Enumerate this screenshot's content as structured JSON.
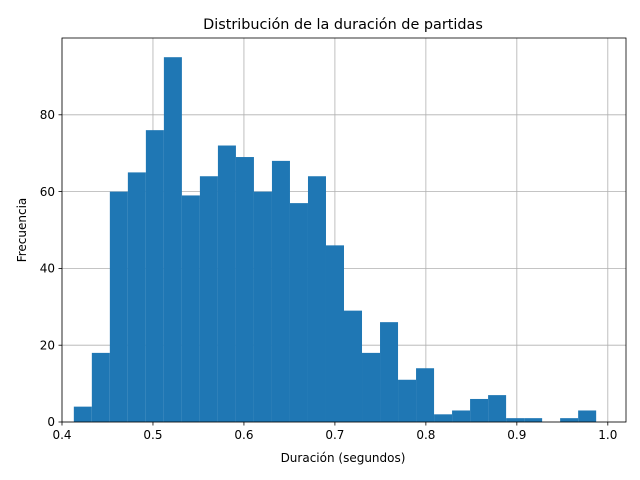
{
  "chart_data": {
    "type": "bar",
    "title": "Distribución de la duración de partidas",
    "xlabel": "Duración (segundos)",
    "ylabel": "Frecuencia",
    "xlim": [
      0.4,
      1.02
    ],
    "ylim": [
      0,
      100
    ],
    "grid": true,
    "bar_color": "#1f77b4",
    "x_ticks": [
      0.4,
      0.5,
      0.6,
      0.7,
      0.8,
      0.9,
      1.0
    ],
    "x_tick_labels": [
      "0.4",
      "0.5",
      "0.6",
      "0.7",
      "0.8",
      "0.9",
      "1.0"
    ],
    "y_ticks": [
      0,
      20,
      40,
      60,
      80
    ],
    "y_tick_labels": [
      "0",
      "20",
      "40",
      "60",
      "80"
    ],
    "bin_start": 0.413,
    "bin_width": 0.0198,
    "values": [
      4,
      18,
      60,
      65,
      76,
      95,
      59,
      64,
      72,
      69,
      60,
      68,
      57,
      64,
      46,
      29,
      18,
      26,
      11,
      14,
      2,
      3,
      6,
      7,
      1,
      1,
      0,
      1,
      3
    ]
  }
}
